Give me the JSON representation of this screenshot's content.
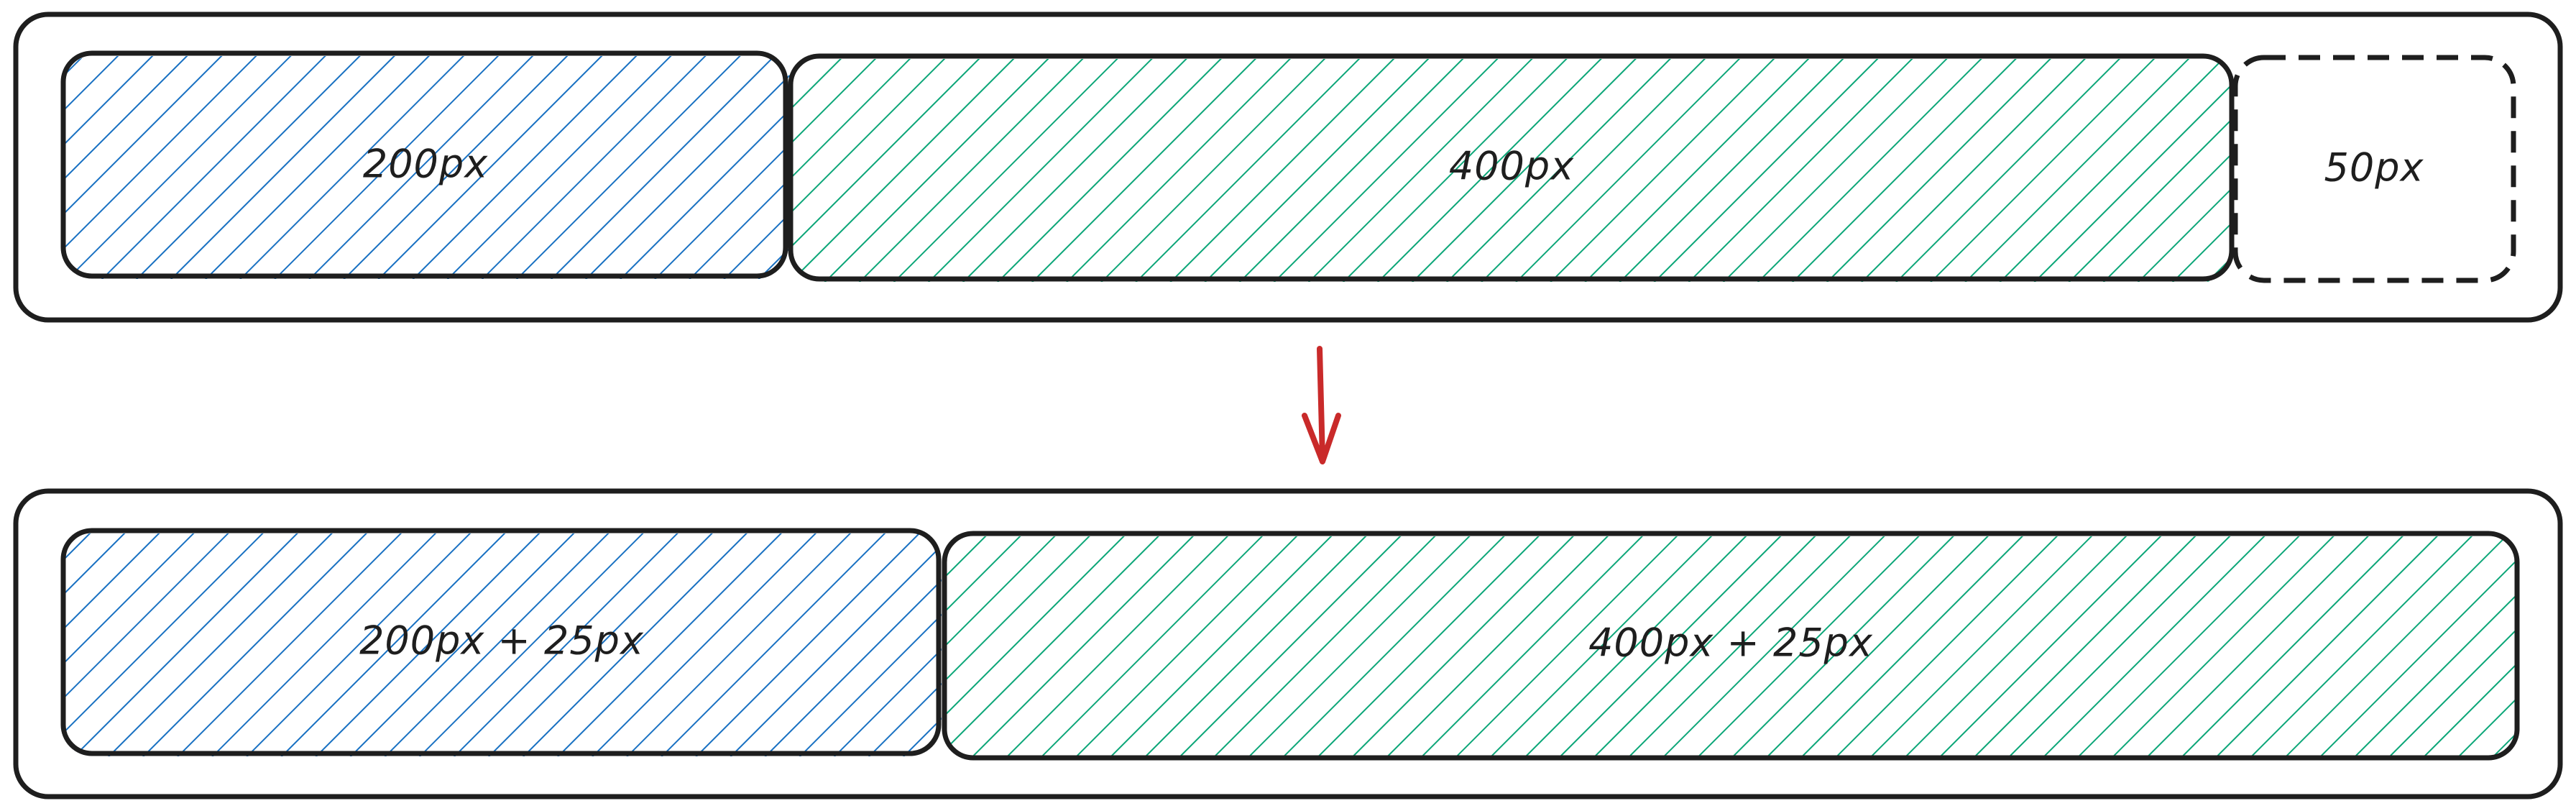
{
  "colors": {
    "stroke": "#1e1e1e",
    "blue": "#1971c2",
    "green": "#0ca678",
    "arrow": "#c92a2a",
    "background": "#ffffff"
  },
  "before": {
    "blue_box": {
      "label": "200px"
    },
    "green_box": {
      "label": "400px"
    },
    "remainder_box": {
      "label": "50px"
    }
  },
  "after": {
    "blue_box": {
      "label": "200px + 25px"
    },
    "green_box": {
      "label": "400px + 25px"
    }
  },
  "arrow": {
    "icon": "arrow-down-icon"
  }
}
